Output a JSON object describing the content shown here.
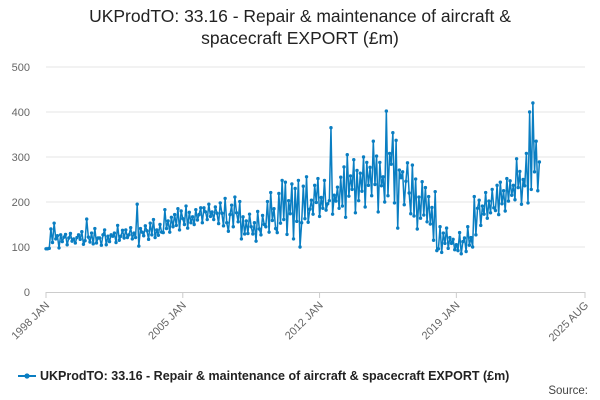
{
  "chart_data": {
    "type": "line",
    "title": "UKProdTO: 33.16 - Repair & maintenance of aircraft & spacecraft EXPORT (£m)",
    "title_lines": [
      "UKProdTO: 33.16 - Repair & maintenance of aircraft &",
      "spacecraft EXPORT (£m)"
    ],
    "xlabel": "",
    "ylabel": "",
    "ylim": [
      0,
      500
    ],
    "y_ticks": [
      0,
      100,
      200,
      300,
      400,
      500
    ],
    "x_range": [
      "1998 JAN",
      "2025 AUG"
    ],
    "x_tick_labels": [
      "1998 JAN",
      "2005 JAN",
      "2012 JAN",
      "2019 JAN",
      "2025 AUG"
    ],
    "frequency": "monthly",
    "grid": true,
    "legend_position": "bottom",
    "series": [
      {
        "name": "UKProdTO: 33.16 - Repair & maintenance of aircraft & spacecraft EXPORT (£m)",
        "color": "#0a7ec2",
        "start": "1998 JAN",
        "values": [
          96,
          96,
          97,
          140,
          110,
          153,
          118,
          125,
          98,
          127,
          112,
          122,
          128,
          105,
          120,
          130,
          113,
          118,
          109,
          121,
          127,
          117,
          134,
          106,
          114,
          162,
          122,
          111,
          131,
          107,
          141,
          109,
          120,
          120,
          104,
          127,
          138,
          105,
          124,
          112,
          127,
          124,
          131,
          110,
          148,
          115,
          124,
          137,
          120,
          138,
          121,
          127,
          143,
          118,
          131,
          121,
          195,
          102,
          141,
          133,
          125,
          147,
          136,
          117,
          153,
          127,
          161,
          121,
          138,
          126,
          150,
          133,
          132,
          183,
          141,
          158,
          133,
          166,
          145,
          172,
          148,
          185,
          138,
          180,
          163,
          150,
          191,
          142,
          177,
          154,
          167,
          150,
          183,
          160,
          172,
          187,
          154,
          187,
          178,
          161,
          195,
          168,
          178,
          161,
          189,
          175,
          152,
          198,
          175,
          147,
          208,
          154,
          135,
          172,
          193,
          145,
          211,
          176,
          156,
          201,
          118,
          167,
          129,
          158,
          130,
          173,
          145,
          129,
          154,
          113,
          179,
          140,
          127,
          170,
          150,
          145,
          201,
          133,
          221,
          159,
          185,
          141,
          132,
          219,
          153,
          248,
          161,
          244,
          128,
          203,
          174,
          240,
          118,
          230,
          157,
          248,
          100,
          154,
          235,
          163,
          256,
          155,
          184,
          204,
          173,
          237,
          199,
          252,
          168,
          210,
          186,
          248,
          182,
          196,
          203,
          365,
          173,
          215,
          202,
          233,
          186,
          255,
          191,
          278,
          166,
          305,
          213,
          258,
          228,
          294,
          176,
          270,
          203,
          264,
          224,
          300,
          189,
          288,
          237,
          277,
          214,
          335,
          239,
          302,
          178,
          288,
          236,
          256,
          200,
          402,
          214,
          308,
          284,
          354,
          198,
          337,
          142,
          271,
          254,
          267,
          194,
          246,
          287,
          220,
          174,
          282,
          169,
          251,
          140,
          211,
          164,
          245,
          171,
          232,
          156,
          212,
          151,
          188,
          115,
          223,
          92,
          96,
          145,
          88,
          131,
          108,
          142,
          97,
          121,
          108,
          117,
          94,
          105,
          92,
          132,
          85,
          112,
          120,
          90,
          145,
          104,
          121,
          100,
          212,
          127,
          186,
          204,
          148,
          191,
          173,
          221,
          164,
          202,
          176,
          228,
          187,
          181,
          237,
          172,
          244,
          196,
          225,
          180,
          252,
          202,
          247,
          215,
          237,
          205,
          296,
          232,
          268,
          195,
          250,
          236,
          308,
          198,
          400,
          228,
          420,
          267,
          335,
          225,
          289
        ]
      }
    ]
  },
  "source": {
    "label": "Source:"
  }
}
